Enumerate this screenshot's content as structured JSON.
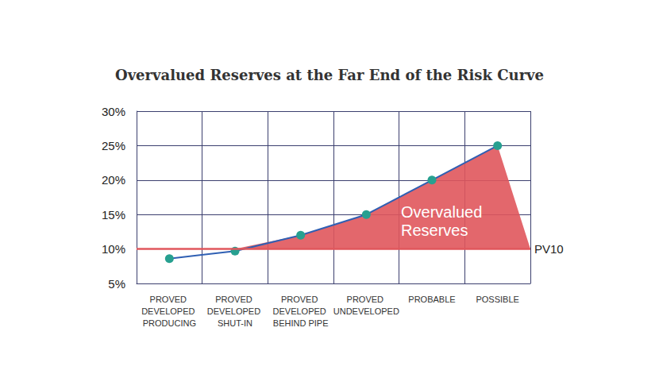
{
  "chart_data": {
    "type": "line",
    "title": "Overvalued Reserves at the Far End of the Risk Curve",
    "categories": [
      "PROVED DEVELOPED PRODUCING",
      "PROVED DEVELOPED SHUT-IN",
      "PROVED DEVELOPED BEHIND PIPE",
      "PROVED UNDEVELOPED",
      "PROBABLE",
      "POSSIBLE"
    ],
    "values": [
      8.6,
      9.7,
      12,
      15,
      20,
      25
    ],
    "color": "#2f5fb3",
    "marker": "circle",
    "ylim": [
      5,
      30
    ],
    "yticks": [
      {
        "value": 5,
        "label": "5%"
      },
      {
        "value": 10,
        "label": "10%"
      },
      {
        "value": 15,
        "label": "15%"
      },
      {
        "value": 20,
        "label": "20%"
      },
      {
        "value": 25,
        "label": "25%"
      },
      {
        "value": 30,
        "label": "30%"
      }
    ],
    "grid": true,
    "reference_line": {
      "value": 10,
      "label": "PV10",
      "color": "#e0575c"
    },
    "annotations": [
      {
        "text": "Overvalued Reserves"
      }
    ]
  }
}
